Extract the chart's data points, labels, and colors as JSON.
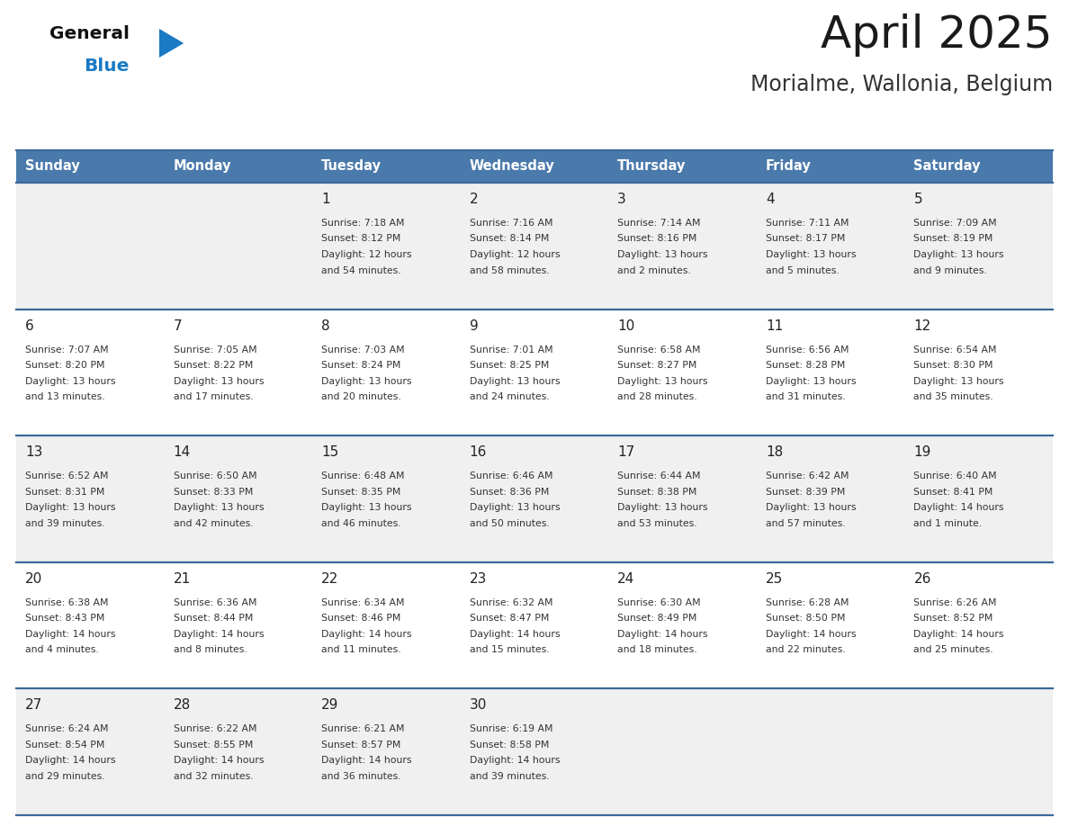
{
  "title": "April 2025",
  "subtitle": "Morialme, Wallonia, Belgium",
  "days_of_week": [
    "Sunday",
    "Monday",
    "Tuesday",
    "Wednesday",
    "Thursday",
    "Friday",
    "Saturday"
  ],
  "header_bg": "#4a7aab",
  "header_text": "#ffffff",
  "row_bg_odd": "#f0f0f0",
  "row_bg_even": "#ffffff",
  "separator_color": "#3a6a9a",
  "day_number_color": "#222222",
  "cell_text_color": "#333333",
  "title_color": "#1a1a1a",
  "subtitle_color": "#333333",
  "logo_general_color": "#111111",
  "logo_blue_color": "#1a7ac4",
  "weeks": [
    [
      {
        "day": "",
        "sunrise": "",
        "sunset": "",
        "daylight": ""
      },
      {
        "day": "",
        "sunrise": "",
        "sunset": "",
        "daylight": ""
      },
      {
        "day": "1",
        "sunrise": "7:18 AM",
        "sunset": "8:12 PM",
        "daylight": "12 hours\nand 54 minutes."
      },
      {
        "day": "2",
        "sunrise": "7:16 AM",
        "sunset": "8:14 PM",
        "daylight": "12 hours\nand 58 minutes."
      },
      {
        "day": "3",
        "sunrise": "7:14 AM",
        "sunset": "8:16 PM",
        "daylight": "13 hours\nand 2 minutes."
      },
      {
        "day": "4",
        "sunrise": "7:11 AM",
        "sunset": "8:17 PM",
        "daylight": "13 hours\nand 5 minutes."
      },
      {
        "day": "5",
        "sunrise": "7:09 AM",
        "sunset": "8:19 PM",
        "daylight": "13 hours\nand 9 minutes."
      }
    ],
    [
      {
        "day": "6",
        "sunrise": "7:07 AM",
        "sunset": "8:20 PM",
        "daylight": "13 hours\nand 13 minutes."
      },
      {
        "day": "7",
        "sunrise": "7:05 AM",
        "sunset": "8:22 PM",
        "daylight": "13 hours\nand 17 minutes."
      },
      {
        "day": "8",
        "sunrise": "7:03 AM",
        "sunset": "8:24 PM",
        "daylight": "13 hours\nand 20 minutes."
      },
      {
        "day": "9",
        "sunrise": "7:01 AM",
        "sunset": "8:25 PM",
        "daylight": "13 hours\nand 24 minutes."
      },
      {
        "day": "10",
        "sunrise": "6:58 AM",
        "sunset": "8:27 PM",
        "daylight": "13 hours\nand 28 minutes."
      },
      {
        "day": "11",
        "sunrise": "6:56 AM",
        "sunset": "8:28 PM",
        "daylight": "13 hours\nand 31 minutes."
      },
      {
        "day": "12",
        "sunrise": "6:54 AM",
        "sunset": "8:30 PM",
        "daylight": "13 hours\nand 35 minutes."
      }
    ],
    [
      {
        "day": "13",
        "sunrise": "6:52 AM",
        "sunset": "8:31 PM",
        "daylight": "13 hours\nand 39 minutes."
      },
      {
        "day": "14",
        "sunrise": "6:50 AM",
        "sunset": "8:33 PM",
        "daylight": "13 hours\nand 42 minutes."
      },
      {
        "day": "15",
        "sunrise": "6:48 AM",
        "sunset": "8:35 PM",
        "daylight": "13 hours\nand 46 minutes."
      },
      {
        "day": "16",
        "sunrise": "6:46 AM",
        "sunset": "8:36 PM",
        "daylight": "13 hours\nand 50 minutes."
      },
      {
        "day": "17",
        "sunrise": "6:44 AM",
        "sunset": "8:38 PM",
        "daylight": "13 hours\nand 53 minutes."
      },
      {
        "day": "18",
        "sunrise": "6:42 AM",
        "sunset": "8:39 PM",
        "daylight": "13 hours\nand 57 minutes."
      },
      {
        "day": "19",
        "sunrise": "6:40 AM",
        "sunset": "8:41 PM",
        "daylight": "14 hours\nand 1 minute."
      }
    ],
    [
      {
        "day": "20",
        "sunrise": "6:38 AM",
        "sunset": "8:43 PM",
        "daylight": "14 hours\nand 4 minutes."
      },
      {
        "day": "21",
        "sunrise": "6:36 AM",
        "sunset": "8:44 PM",
        "daylight": "14 hours\nand 8 minutes."
      },
      {
        "day": "22",
        "sunrise": "6:34 AM",
        "sunset": "8:46 PM",
        "daylight": "14 hours\nand 11 minutes."
      },
      {
        "day": "23",
        "sunrise": "6:32 AM",
        "sunset": "8:47 PM",
        "daylight": "14 hours\nand 15 minutes."
      },
      {
        "day": "24",
        "sunrise": "6:30 AM",
        "sunset": "8:49 PM",
        "daylight": "14 hours\nand 18 minutes."
      },
      {
        "day": "25",
        "sunrise": "6:28 AM",
        "sunset": "8:50 PM",
        "daylight": "14 hours\nand 22 minutes."
      },
      {
        "day": "26",
        "sunrise": "6:26 AM",
        "sunset": "8:52 PM",
        "daylight": "14 hours\nand 25 minutes."
      }
    ],
    [
      {
        "day": "27",
        "sunrise": "6:24 AM",
        "sunset": "8:54 PM",
        "daylight": "14 hours\nand 29 minutes."
      },
      {
        "day": "28",
        "sunrise": "6:22 AM",
        "sunset": "8:55 PM",
        "daylight": "14 hours\nand 32 minutes."
      },
      {
        "day": "29",
        "sunrise": "6:21 AM",
        "sunset": "8:57 PM",
        "daylight": "14 hours\nand 36 minutes."
      },
      {
        "day": "30",
        "sunrise": "6:19 AM",
        "sunset": "8:58 PM",
        "daylight": "14 hours\nand 39 minutes."
      },
      {
        "day": "",
        "sunrise": "",
        "sunset": "",
        "daylight": ""
      },
      {
        "day": "",
        "sunrise": "",
        "sunset": "",
        "daylight": ""
      },
      {
        "day": "",
        "sunrise": "",
        "sunset": "",
        "daylight": ""
      }
    ]
  ]
}
